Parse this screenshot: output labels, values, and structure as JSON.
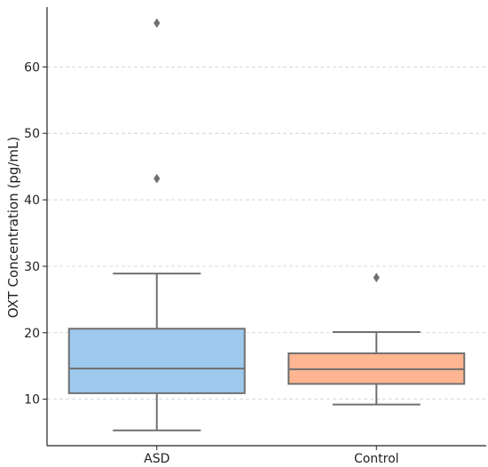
{
  "chart_data": {
    "type": "box",
    "title": "",
    "xlabel": "",
    "ylabel": "OXT Concentration (pg/mL)",
    "ylim": [
      3,
      69
    ],
    "yticks": [
      10,
      20,
      30,
      40,
      50,
      60
    ],
    "grid": {
      "y": true,
      "x": false,
      "style": "dashed"
    },
    "categories": [
      "ASD",
      "Control"
    ],
    "boxes": [
      {
        "name": "ASD",
        "color": "#9ec9ee",
        "whisker_low": 5.3,
        "q1": 10.9,
        "median": 14.6,
        "q3": 20.6,
        "whisker_high": 28.9,
        "outliers": [
          43.2,
          66.6
        ]
      },
      {
        "name": "Control",
        "color": "#ffb591",
        "whisker_low": 9.2,
        "q1": 12.3,
        "median": 14.5,
        "q3": 16.9,
        "whisker_high": 20.1,
        "outliers": [
          28.3
        ]
      }
    ],
    "edge_color": "#707070",
    "grid_color": "#cccccc"
  }
}
